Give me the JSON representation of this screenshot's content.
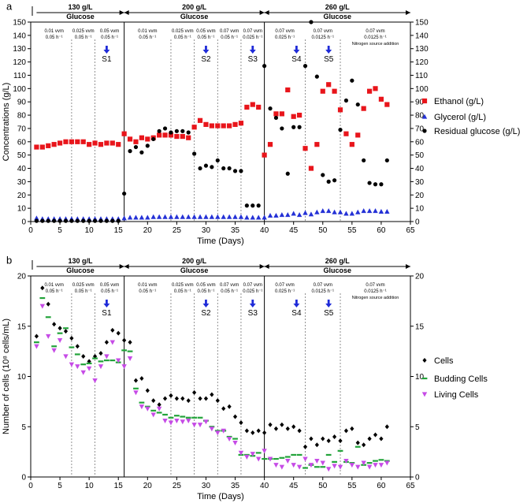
{
  "chart_data": [
    {
      "panel": "a",
      "type": "scatter",
      "xlabel": "Time (Days)",
      "ylabel": "Concentrations (g/L)",
      "xlim": [
        0,
        65
      ],
      "ylim": [
        0,
        150
      ],
      "xticks": [
        0,
        5,
        10,
        15,
        20,
        25,
        30,
        35,
        40,
        45,
        50,
        55,
        60,
        65
      ],
      "yticks": [
        0,
        10,
        20,
        30,
        40,
        50,
        60,
        70,
        80,
        90,
        100,
        110,
        120,
        130,
        140,
        150
      ],
      "right_yticks": [
        0,
        10,
        20,
        30,
        40,
        50,
        60,
        70,
        80,
        90,
        100,
        110,
        120,
        130,
        140,
        150
      ],
      "phases": [
        {
          "label_top": "130 g/L",
          "label_bottom": "Glucose",
          "start": 1,
          "end": 16
        },
        {
          "label_top": "200 g/L",
          "label_bottom": "Glucose",
          "start": 16,
          "end": 40
        },
        {
          "label_top": "260 g/L",
          "label_bottom": "Glucose",
          "start": 40,
          "end": 65
        }
      ],
      "solid_dividers": [
        16,
        40
      ],
      "dashed_dividers": [
        7,
        11,
        24,
        28,
        32,
        36,
        47,
        53
      ],
      "conditions": [
        {
          "x": 4,
          "line1": "0.01 vvm",
          "line2": "0.05 h⁻¹"
        },
        {
          "x": 9,
          "line1": "0.025 vvm",
          "line2": "0.05 h⁻¹"
        },
        {
          "x": 13.5,
          "line1": "0.05 vvm",
          "line2": "0.05 h⁻¹"
        },
        {
          "x": 20,
          "line1": "0.01 vvm",
          "line2": "0.05 h⁻¹"
        },
        {
          "x": 26,
          "line1": "0.025 vvm",
          "line2": "0.05 h⁻¹"
        },
        {
          "x": 30,
          "line1": "0.05 vvm",
          "line2": "0.05 h⁻¹"
        },
        {
          "x": 34,
          "line1": "0.07 vvm",
          "line2": "0.05 h⁻¹"
        },
        {
          "x": 38,
          "line1": "0.07 vvm",
          "line2": "0.025 h⁻¹"
        },
        {
          "x": 43.5,
          "line1": "0.07 vvm",
          "line2": "0.025 h⁻¹"
        },
        {
          "x": 50,
          "line1": "0.07 vvm",
          "line2": "0.0125 h⁻¹"
        },
        {
          "x": 59,
          "line1": "0.07 vvm",
          "line2": "0.0125 h⁻¹",
          "line3": "Nitrogen source addition"
        }
      ],
      "samples": [
        {
          "label": "S1",
          "x": 13
        },
        {
          "label": "S2",
          "x": 30
        },
        {
          "label": "S3",
          "x": 38
        },
        {
          "label": "S4",
          "x": 45.5
        },
        {
          "label": "S5",
          "x": 51
        }
      ],
      "legend_position": "right",
      "series": [
        {
          "name": "Ethanol (g/L)",
          "marker": "square",
          "color": "#e8151b",
          "x": [
            1,
            2,
            3,
            4,
            5,
            6,
            7,
            8,
            9,
            10,
            11,
            12,
            13,
            14,
            15,
            16,
            17,
            18,
            19,
            20,
            21,
            22,
            23,
            24,
            25,
            26,
            27,
            28,
            29,
            30,
            31,
            32,
            33,
            34,
            35,
            36,
            37,
            38,
            39,
            40,
            41,
            42,
            43,
            44,
            45,
            46,
            47,
            48,
            49,
            50,
            51,
            52,
            53,
            54,
            55,
            56,
            57,
            58,
            59,
            60,
            61
          ],
          "y": [
            56,
            56,
            57,
            58,
            59,
            60,
            60,
            60,
            60,
            58,
            59,
            58,
            59,
            59,
            58,
            66,
            62,
            60,
            63,
            62,
            63,
            65,
            65,
            65,
            64,
            64,
            63,
            71,
            76,
            73,
            72,
            72,
            72,
            72,
            73,
            74,
            86,
            88,
            86,
            50,
            58,
            81,
            81,
            99,
            79,
            80,
            55,
            40,
            58,
            98,
            103,
            98,
            84,
            66,
            58,
            65,
            85,
            98,
            100,
            92,
            88
          ]
        },
        {
          "name": "Glycerol (g/L)",
          "marker": "triangle",
          "color": "#2431d6",
          "x": [
            1,
            2,
            3,
            4,
            5,
            6,
            7,
            8,
            9,
            10,
            11,
            12,
            13,
            14,
            15,
            16,
            17,
            18,
            19,
            20,
            21,
            22,
            23,
            24,
            25,
            26,
            27,
            28,
            29,
            30,
            31,
            32,
            33,
            34,
            35,
            36,
            37,
            38,
            39,
            40,
            41,
            42,
            43,
            44,
            45,
            46,
            47,
            48,
            49,
            50,
            51,
            52,
            53,
            54,
            55,
            56,
            57,
            58,
            59,
            60,
            61
          ],
          "y": [
            2.5,
            2,
            2,
            2,
            2,
            2,
            2,
            2,
            2,
            2,
            2,
            2,
            2,
            2,
            2,
            2.5,
            3,
            3,
            3,
            3,
            3.5,
            3.5,
            3.5,
            3.5,
            3.5,
            3.5,
            3.5,
            3.5,
            3.5,
            3.5,
            3.5,
            3.5,
            3.5,
            3.5,
            3.5,
            3.5,
            3,
            3,
            3,
            3,
            4.5,
            4.5,
            5,
            5,
            6,
            5,
            6.5,
            5.5,
            7,
            8,
            8,
            7,
            7,
            6,
            6,
            7,
            8,
            8,
            8,
            7.5,
            7.5
          ]
        },
        {
          "name": "Residual glucose (g/L)",
          "marker": "circle",
          "color": "#000000",
          "x": [
            1,
            2,
            3,
            4,
            5,
            6,
            7,
            8,
            9,
            10,
            11,
            12,
            13,
            14,
            15,
            16,
            17,
            18,
            19,
            20,
            21,
            22,
            23,
            24,
            25,
            26,
            27,
            28,
            29,
            30,
            31,
            32,
            33,
            34,
            35,
            36,
            37,
            38,
            39,
            40,
            41,
            42,
            43,
            44,
            45,
            46,
            47,
            48,
            49,
            50,
            51,
            52,
            53,
            54,
            55,
            56,
            57,
            58,
            59,
            60,
            61
          ],
          "y": [
            0.5,
            0.5,
            0.5,
            0.5,
            0.5,
            0.5,
            0.5,
            0.5,
            0.5,
            0.5,
            0.5,
            0.5,
            0.5,
            0.5,
            0.5,
            21,
            53,
            56,
            52,
            57,
            62,
            68,
            70,
            67,
            68,
            68,
            67,
            51,
            40,
            42,
            41,
            46,
            40,
            40,
            38,
            38,
            12,
            12,
            12,
            117,
            85,
            78,
            70,
            36,
            71,
            71,
            117,
            150,
            109,
            35,
            30,
            31,
            69,
            91,
            106,
            88,
            46,
            29,
            28,
            28,
            46
          ]
        }
      ]
    },
    {
      "panel": "b",
      "type": "scatter",
      "xlabel": "Time (Days)",
      "ylabel": "Number of cells (10⁸ cells/mL)",
      "xlim": [
        0,
        65
      ],
      "ylim": [
        0,
        20
      ],
      "xticks": [
        0,
        5,
        10,
        15,
        20,
        25,
        30,
        35,
        40,
        45,
        50,
        55,
        60,
        65
      ],
      "yticks": [
        0,
        5,
        10,
        15,
        20
      ],
      "right_yticks": [
        0,
        5,
        10,
        15,
        20
      ],
      "phases": [
        {
          "label_top": "130 g/L",
          "label_bottom": "Glucose",
          "start": 1,
          "end": 16
        },
        {
          "label_top": "200 g/L",
          "label_bottom": "Glucose",
          "start": 16,
          "end": 40
        },
        {
          "label_top": "260 g/L",
          "label_bottom": "Glucose",
          "start": 40,
          "end": 65
        }
      ],
      "solid_dividers": [
        16,
        40
      ],
      "dashed_dividers": [
        7,
        11,
        24,
        28,
        32,
        36,
        47,
        53
      ],
      "conditions": [
        {
          "x": 4,
          "line1": "0.01 vvm",
          "line2": "0.05 h⁻¹"
        },
        {
          "x": 9,
          "line1": "0.025 vvm",
          "line2": "0.05 h⁻¹"
        },
        {
          "x": 13.5,
          "line1": "0.05 vvm",
          "line2": "0.05 h⁻¹"
        },
        {
          "x": 20,
          "line1": "0.01 vvm",
          "line2": "0.05 h⁻¹"
        },
        {
          "x": 26,
          "line1": "0.025 vvm",
          "line2": "0.05 h⁻¹"
        },
        {
          "x": 30,
          "line1": "0.05 vvm",
          "line2": "0.05 h⁻¹"
        },
        {
          "x": 34,
          "line1": "0.07 vvm",
          "line2": "0.05 h⁻¹"
        },
        {
          "x": 38,
          "line1": "0.07 vvm",
          "line2": "0.025 h⁻¹"
        },
        {
          "x": 43.5,
          "line1": "0.07 vvm",
          "line2": "0.025 h⁻¹"
        },
        {
          "x": 50,
          "line1": "0.07 vvm",
          "line2": "0.0125 h⁻¹"
        },
        {
          "x": 59,
          "line1": "0.07 vvm",
          "line2": "0.0125 h⁻¹",
          "line3": "Nitrogen source addition"
        }
      ],
      "samples": [
        {
          "label": "S1",
          "x": 13
        },
        {
          "label": "S2",
          "x": 30
        },
        {
          "label": "S3",
          "x": 38
        },
        {
          "label": "S4",
          "x": 45.5
        },
        {
          "label": "S5",
          "x": 51
        }
      ],
      "legend_position": "right",
      "series": [
        {
          "name": "Cells",
          "marker": "diamond",
          "color": "#000000",
          "x": [
            1,
            2,
            3,
            4,
            5,
            6,
            7,
            8,
            9,
            10,
            11,
            12,
            13,
            14,
            15,
            16,
            17,
            18,
            19,
            20,
            21,
            22,
            23,
            24,
            25,
            26,
            27,
            28,
            29,
            30,
            31,
            32,
            33,
            34,
            35,
            36,
            37,
            38,
            39,
            40,
            41,
            42,
            43,
            44,
            45,
            46,
            47,
            48,
            49,
            50,
            51,
            52,
            53,
            54,
            55,
            56,
            57,
            58,
            59,
            60,
            61
          ],
          "y": [
            14,
            18.8,
            17.2,
            15.2,
            14.8,
            14.5,
            13.8,
            13,
            12,
            11.5,
            12,
            12.3,
            13.4,
            14.6,
            14.3,
            13.6,
            13.4,
            9.6,
            9.8,
            8.6,
            7.6,
            7.2,
            7.8,
            8.1,
            7.8,
            7.8,
            7.6,
            8.4,
            7.8,
            7.8,
            8.2,
            7.6,
            6.8,
            7.0,
            6.0,
            5.4,
            4.6,
            4.4,
            4.6,
            4.4,
            5.2,
            4.8,
            5.2,
            4.8,
            5.0,
            4.6,
            3.0,
            3.8,
            3.2,
            3.8,
            3.6,
            4.0,
            3.6,
            4.6,
            4.8,
            3.4,
            3.2,
            3.8,
            4.2,
            3.8,
            5.0
          ]
        },
        {
          "name": "Budding Cells",
          "marker": "dash",
          "color": "#22a33a",
          "x": [
            1,
            2,
            3,
            4,
            5,
            6,
            7,
            8,
            9,
            10,
            11,
            12,
            13,
            14,
            15,
            16,
            17,
            18,
            19,
            20,
            21,
            22,
            23,
            24,
            25,
            26,
            27,
            28,
            29,
            30,
            31,
            32,
            33,
            34,
            35,
            36,
            37,
            38,
            39,
            40,
            41,
            42,
            43,
            44,
            45,
            46,
            47,
            48,
            49,
            50,
            51,
            52,
            53,
            54,
            55,
            56,
            57,
            58,
            59,
            60,
            61
          ],
          "y": [
            13.4,
            17.8,
            15.9,
            13,
            14.3,
            14.8,
            12.9,
            12.2,
            11.2,
            11.3,
            11.8,
            11.5,
            11.6,
            11.6,
            11.4,
            12.6,
            12.5,
            8.8,
            7.4,
            7.0,
            6.6,
            6.4,
            6.2,
            5.9,
            6.1,
            6.0,
            5.9,
            5.9,
            5.9,
            5.6,
            5.0,
            4.6,
            4.6,
            4.0,
            3.8,
            2.2,
            2.2,
            2.1,
            2.4,
            1.8,
            1.8,
            1.8,
            1.9,
            2.0,
            2.2,
            2.2,
            0.9,
            1.2,
            1.0,
            1.0,
            2.2,
            1.5,
            2.6,
            1.5,
            1.4,
            3.0,
            1.2,
            1.4,
            1.6,
            1.7,
            1.6
          ]
        },
        {
          "name": "Living Cells",
          "marker": "triangle-down",
          "color": "#c64be6",
          "x": [
            1,
            2,
            3,
            4,
            5,
            6,
            7,
            8,
            9,
            10,
            11,
            12,
            13,
            14,
            15,
            16,
            17,
            18,
            19,
            20,
            21,
            22,
            23,
            24,
            25,
            26,
            27,
            28,
            29,
            30,
            31,
            32,
            33,
            34,
            35,
            36,
            37,
            38,
            39,
            40,
            41,
            42,
            43,
            44,
            45,
            46,
            47,
            48,
            49,
            50,
            51,
            52,
            53,
            54,
            55,
            56,
            57,
            58,
            59,
            60,
            61
          ],
          "y": [
            13,
            17,
            14,
            12.6,
            13.6,
            12,
            11.2,
            11,
            10.4,
            10.8,
            9.6,
            11,
            12,
            13.4,
            11.6,
            11,
            11.8,
            8.4,
            7,
            6.8,
            6.2,
            6.8,
            5.6,
            5.4,
            5.6,
            5.5,
            5.6,
            5.2,
            5.2,
            5.5,
            4.8,
            4.4,
            4.6,
            3.8,
            3.4,
            2.4,
            2.0,
            2.3,
            1.8,
            2.6,
            1.8,
            1.2,
            1.0,
            1.6,
            1.2,
            1.0,
            1.8,
            1.2,
            1.6,
            1.4,
            0.8,
            1.1,
            1.0,
            1.6,
            1.2,
            1.0,
            1.4,
            1.0,
            1.2,
            1.2,
            1.4
          ]
        }
      ]
    }
  ],
  "panel_labels": [
    "a",
    "b"
  ]
}
